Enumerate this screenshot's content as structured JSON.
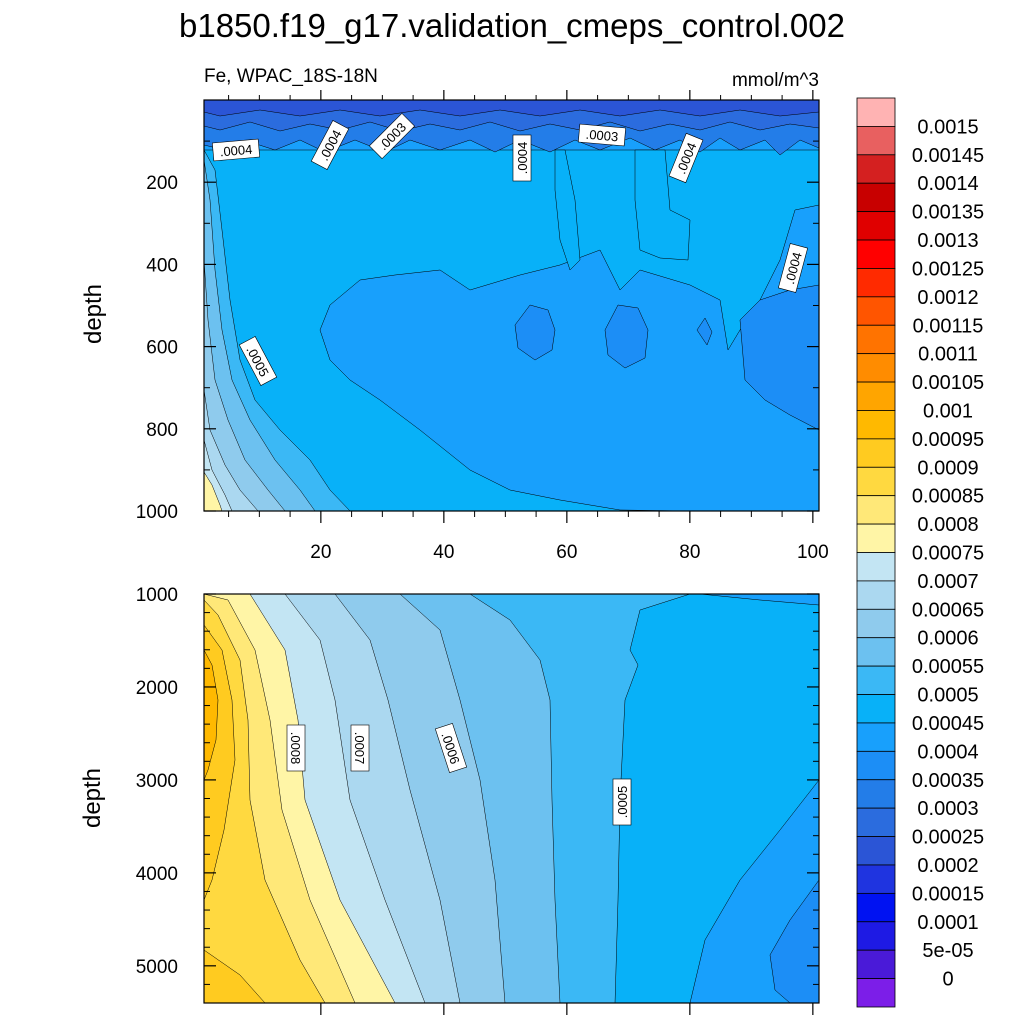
{
  "title": "b1850.f19_g17.validation_cmeps_control.002",
  "subtitle_left": "Fe, WPAC_18S-18N",
  "subtitle_right": "mmol/m^3",
  "chart_data": [
    {
      "type": "contour",
      "panel": "top",
      "ylabel": "depth",
      "xlim": [
        1,
        101
      ],
      "ylim": [
        0,
        1000
      ],
      "y_reversed": true,
      "x_ticks": [
        20,
        40,
        60,
        80,
        100
      ],
      "y_ticks": [
        200,
        400,
        600,
        800,
        1000
      ],
      "contour_labels": [
        ".0004",
        ".0004",
        ".0003",
        ".0004",
        ".0003",
        ".0004",
        ".0004",
        ".0005"
      ],
      "surface_min_band": "0.00025–0.0003",
      "deep_band_west_max": "0.0008–0.00085"
    },
    {
      "type": "contour",
      "panel": "bottom",
      "ylabel": "depth",
      "xlim": [
        1,
        101
      ],
      "ylim": [
        1000,
        5400
      ],
      "y_reversed": true,
      "y_ticks": [
        1000,
        2000,
        3000,
        4000,
        5000
      ],
      "contour_labels": [
        ".0008",
        ".0007",
        ".0006",
        ".0005"
      ],
      "west_max_band": "0.00095–0.001"
    }
  ],
  "colorbar": {
    "levels": [
      "0.0015",
      "0.00145",
      "0.0014",
      "0.00135",
      "0.0013",
      "0.00125",
      "0.0012",
      "0.00115",
      "0.0011",
      "0.00105",
      "0.001",
      "0.00095",
      "0.0009",
      "0.00085",
      "0.0008",
      "0.00075",
      "0.0007",
      "0.00065",
      "0.0006",
      "0.00055",
      "0.0005",
      "0.00045",
      "0.0004",
      "0.00035",
      "0.0003",
      "0.00025",
      "0.0002",
      "0.00015",
      "0.0001",
      "5e-05",
      "0"
    ],
    "colors": [
      "#ffb3b3",
      "#e86060",
      "#d42020",
      "#c80000",
      "#e00000",
      "#ff0000",
      "#ff2a00",
      "#ff5500",
      "#ff7300",
      "#ff8c00",
      "#ffa500",
      "#ffb900",
      "#ffcb20",
      "#ffd940",
      "#ffe878",
      "#fff5a6",
      "#c3e5f3",
      "#abd8f0",
      "#8fcbed",
      "#6cc1f0",
      "#3bb8f5",
      "#08b1f8",
      "#18a0fc",
      "#1c8ef6",
      "#237de8",
      "#2b6cde",
      "#2b55d6",
      "#1f34e0",
      "#0012f2",
      "#1e1ae4",
      "#4a1ad8",
      "#7c1ee8"
    ]
  }
}
